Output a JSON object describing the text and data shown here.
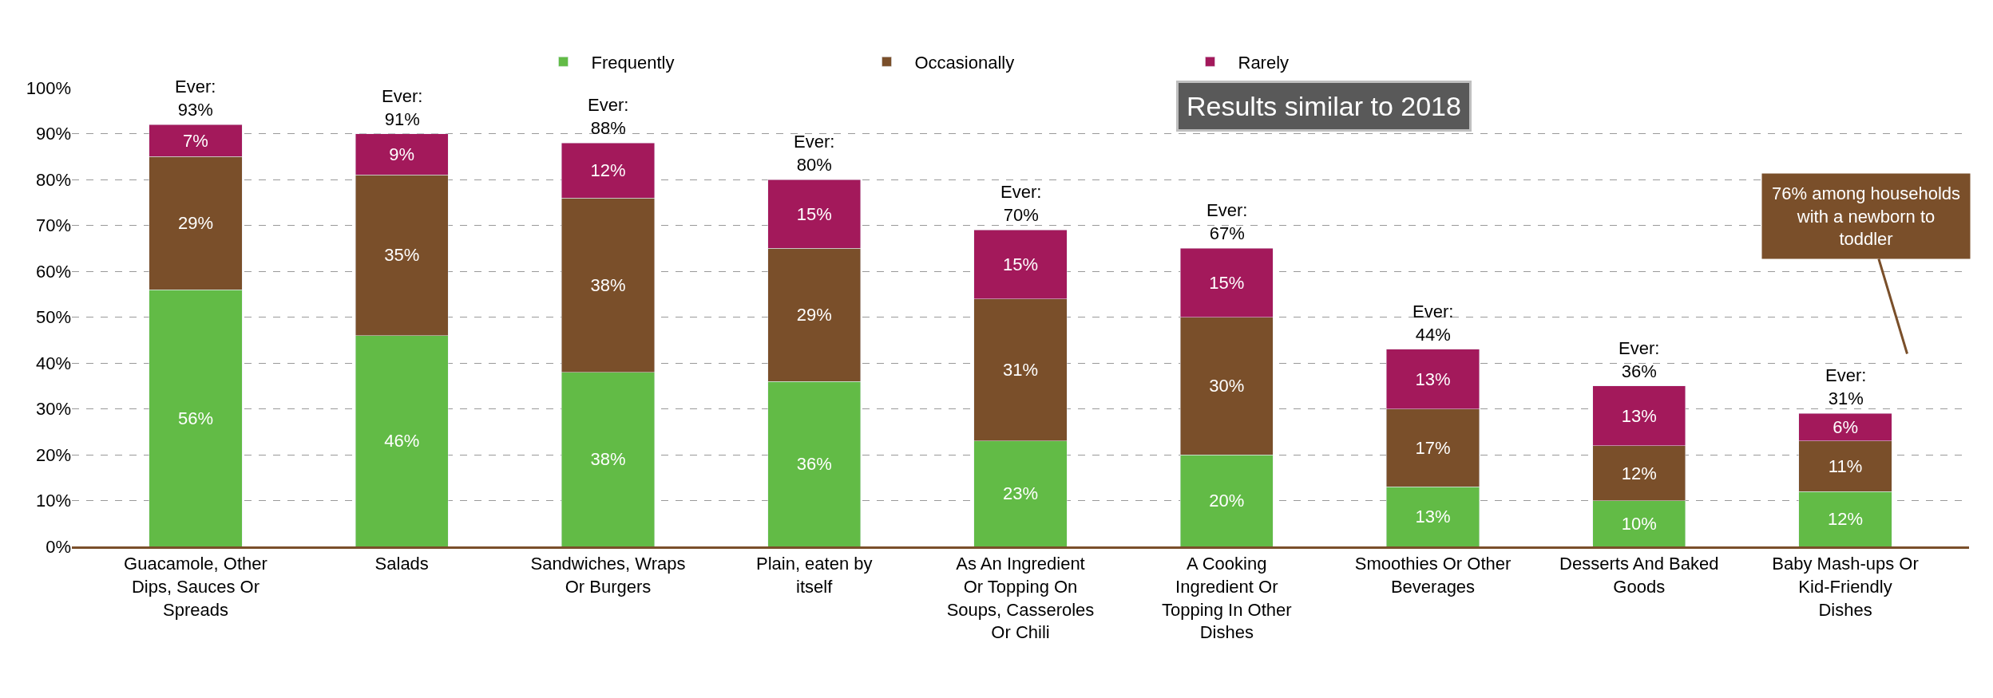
{
  "chart_data": {
    "type": "bar",
    "stacked": true,
    "categories": [
      "Guacamole, Other Dips, Sauces Or Spreads",
      "Salads",
      "Sandwiches, Wraps Or Burgers",
      "Plain, eaten by itself",
      "As An Ingredient Or Topping On Soups, Casseroles Or Chili",
      "A Cooking Ingredient Or Topping In Other Dishes",
      "Smoothies Or Other Beverages",
      "Desserts And Baked Goods",
      "Baby Mash-ups Or Kid-Friendly Dishes"
    ],
    "series": [
      {
        "name": "Frequently",
        "color": "#62bb46",
        "values": [
          56,
          46,
          38,
          36,
          23,
          20,
          13,
          10,
          12
        ],
        "value_labels": [
          "56%",
          "46%",
          "38%",
          "36%",
          "23%",
          "20%",
          "13%",
          "10%",
          "12%"
        ]
      },
      {
        "name": "Occasionally",
        "color": "#7a4f2a",
        "values": [
          29,
          35,
          38,
          29,
          31,
          30,
          17,
          12,
          11
        ],
        "value_labels": [
          "29%",
          "35%",
          "38%",
          "29%",
          "31%",
          "30%",
          "17%",
          "12%",
          "11%"
        ]
      },
      {
        "name": "Rarely",
        "color": "#a3195b",
        "values": [
          7,
          9,
          12,
          15,
          15,
          15,
          13,
          13,
          6
        ],
        "value_labels": [
          "7%",
          "9%",
          "12%",
          "15%",
          "15%",
          "15%",
          "13%",
          "13%",
          "6%"
        ]
      }
    ],
    "totals": [
      "Ever: 93%",
      "Ever: 91%",
      "Ever: 88%",
      "Ever: 80%",
      "Ever: 70%",
      "Ever: 67%",
      "Ever: 44%",
      "Ever: 36%",
      "Ever: 31%"
    ],
    "ylim": [
      0,
      100
    ],
    "yticks": [
      {
        "value": 0,
        "label": "0%"
      },
      {
        "value": 10,
        "label": "10%"
      },
      {
        "value": 20,
        "label": "20%"
      },
      {
        "value": 30,
        "label": "30%"
      },
      {
        "value": 40,
        "label": "40%"
      },
      {
        "value": 50,
        "label": "50%"
      },
      {
        "value": 60,
        "label": "60%"
      },
      {
        "value": 70,
        "label": "70%"
      },
      {
        "value": 80,
        "label": "80%"
      },
      {
        "value": 90,
        "label": "90%"
      },
      {
        "value": 100,
        "label": "100%"
      }
    ],
    "grid": "y",
    "legend": "top",
    "annotations": [
      "Results similar to 2018",
      "76% among households with a newborn to toddler"
    ]
  }
}
